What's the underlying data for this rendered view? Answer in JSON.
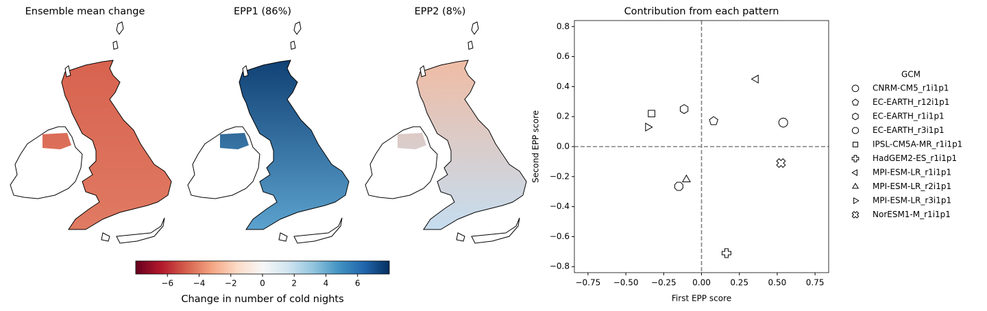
{
  "chart_data": [
    {
      "type": "map",
      "title": "Ensemble mean change",
      "colors": [
        "#d6604d",
        "#e07a62"
      ]
    },
    {
      "type": "map",
      "title": "EPP1 (86%)",
      "colors": [
        "#08366b",
        "#5aa0cc"
      ]
    },
    {
      "type": "map",
      "title": "EPP2 (8%)",
      "colors": [
        "#f4b89c",
        "#c6dcee"
      ]
    },
    {
      "type": "colorbar",
      "xlabel": "Change in number of cold nights",
      "xlim": [
        -8,
        8
      ],
      "xticks": [
        {
          "value": -6,
          "label": "−6"
        },
        {
          "value": -4,
          "label": "−4"
        },
        {
          "value": -2,
          "label": "−2"
        },
        0,
        2,
        4,
        6
      ],
      "colors": [
        "#67001f",
        "#b2182b",
        "#d6604d",
        "#f4a582",
        "#fddbc7",
        "#f7f7f7",
        "#d1e5f0",
        "#92c5de",
        "#4393c3",
        "#2166ac",
        "#053061"
      ]
    },
    {
      "type": "scatter",
      "title": "Contribution from each pattern",
      "xlabel": "First EPP score",
      "ylabel": "Second EPP score",
      "xlim": [
        -0.84,
        0.84
      ],
      "ylim": [
        -0.84,
        0.84
      ],
      "xticks": [
        {
          "value": -0.75,
          "label": "−0.75"
        },
        {
          "value": -0.5,
          "label": "−0.50"
        },
        {
          "value": -0.25,
          "label": "−0.25"
        },
        {
          "value": 0,
          "label": "0.00"
        },
        0.25,
        {
          "value": 0.5,
          "label": "0.50"
        },
        0.75
      ],
      "yticks": [
        {
          "value": -0.8,
          "label": "−0.8"
        },
        {
          "value": -0.6,
          "label": "−0.6"
        },
        {
          "value": -0.4,
          "label": "−0.4"
        },
        {
          "value": -0.2,
          "label": "−0.2"
        },
        {
          "value": 0,
          "label": "0.0"
        },
        0.2,
        0.4,
        0.6,
        0.8
      ],
      "hline": 0,
      "vline": 0,
      "legend_title": "GCM",
      "legend": "right",
      "series": [
        {
          "name": "CNRM-CM5_r1i1p1",
          "marker": "circle",
          "x": 0.54,
          "y": 0.16
        },
        {
          "name": "EC-EARTH_r12i1p1",
          "marker": "pentagon",
          "x": 0.08,
          "y": 0.17
        },
        {
          "name": "EC-EARTH_r1i1p1",
          "marker": "hexagon",
          "x": -0.115,
          "y": 0.25
        },
        {
          "name": "EC-EARTH_r3i1p1",
          "marker": "octagon",
          "x": -0.15,
          "y": -0.265
        },
        {
          "name": "IPSL-CM5A-MR_r1i1p1",
          "marker": "square",
          "x": -0.33,
          "y": 0.22
        },
        {
          "name": "HadGEM2-ES_r1i1p1",
          "marker": "plus",
          "x": 0.165,
          "y": -0.71
        },
        {
          "name": "MPI-ESM-LR_r1i1p1",
          "marker": "triangle-left",
          "x": 0.36,
          "y": 0.45
        },
        {
          "name": "MPI-ESM-LR_r2i1p1",
          "marker": "triangle-up",
          "x": -0.1,
          "y": -0.22
        },
        {
          "name": "MPI-ESM-LR_r3i1p1",
          "marker": "triangle-right",
          "x": -0.355,
          "y": 0.13
        },
        {
          "name": "NorESM1-M_r1i1p1",
          "marker": "x",
          "x": 0.525,
          "y": -0.11
        }
      ]
    }
  ]
}
